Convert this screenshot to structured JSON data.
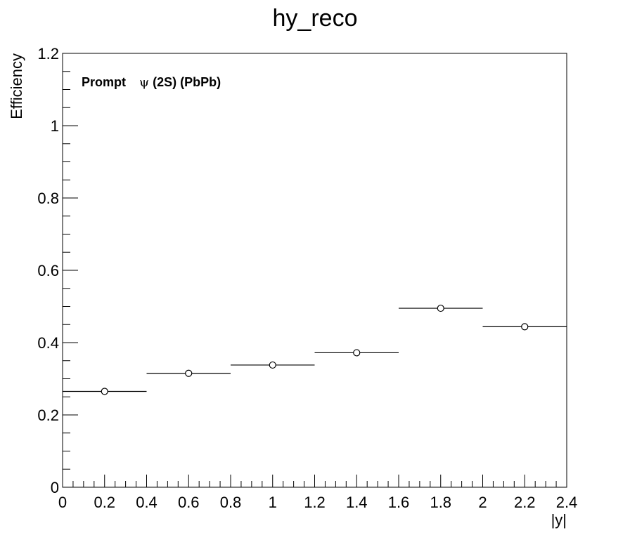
{
  "chart_data": {
    "type": "scatter",
    "title": "hy_reco",
    "xlabel": "|y|",
    "ylabel": "Efficiency",
    "xlim": [
      0,
      2.4
    ],
    "ylim": [
      0,
      1.2
    ],
    "x_ticks": [
      "0",
      "0.2",
      "0.4",
      "0.6",
      "0.8",
      "1",
      "1.2",
      "1.4",
      "1.6",
      "1.8",
      "2",
      "2.2",
      "2.4"
    ],
    "y_ticks": [
      "0",
      "0.2",
      "0.4",
      "0.6",
      "0.8",
      "1",
      "1.2"
    ],
    "annotation": {
      "prefix": "Prompt",
      "symbol": "ψ",
      "suffix": "(2S) (PbPb)"
    },
    "series": [
      {
        "marker": "open-circle",
        "color": "#000000",
        "points": [
          {
            "x": 0.2,
            "y": 0.265,
            "xlo": 0.0,
            "xhi": 0.4
          },
          {
            "x": 0.6,
            "y": 0.315,
            "xlo": 0.4,
            "xhi": 0.8
          },
          {
            "x": 1.0,
            "y": 0.338,
            "xlo": 0.8,
            "xhi": 1.2
          },
          {
            "x": 1.4,
            "y": 0.372,
            "xlo": 1.2,
            "xhi": 1.6
          },
          {
            "x": 1.8,
            "y": 0.495,
            "xlo": 1.6,
            "xhi": 2.0
          },
          {
            "x": 2.2,
            "y": 0.444,
            "xlo": 2.0,
            "xhi": 2.4
          }
        ]
      }
    ],
    "grid": false
  }
}
